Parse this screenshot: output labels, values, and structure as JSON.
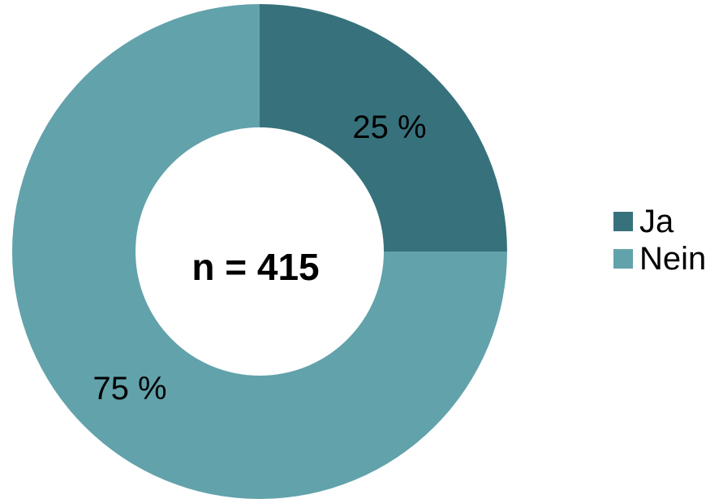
{
  "chart_data": {
    "type": "pie",
    "donut": true,
    "center_label": "n = 415",
    "categories": [
      "Ja",
      "Nein"
    ],
    "values": [
      25,
      75
    ],
    "value_labels": [
      "25 %",
      "75 %"
    ],
    "colors": [
      "#37727c",
      "#62a2ab"
    ],
    "legend_position": "right"
  }
}
